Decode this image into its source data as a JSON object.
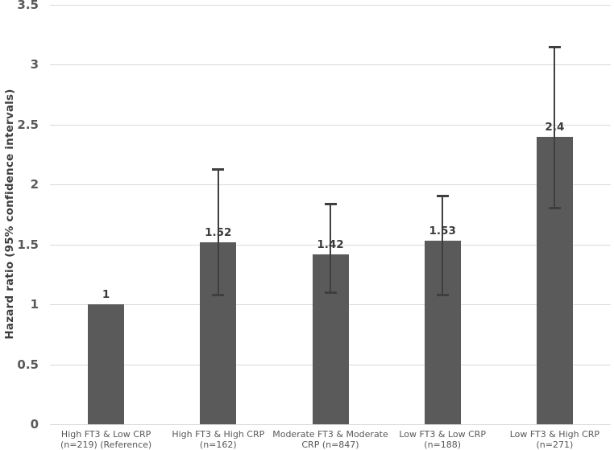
{
  "chart_data": {
    "type": "bar",
    "title": "",
    "xlabel": "",
    "ylabel": "Hazard ratio (95% confidence intervals)",
    "ylim": [
      0,
      3.5
    ],
    "grid": true,
    "legend_position": "none",
    "yticks": [
      {
        "value": 0,
        "label": "0"
      },
      {
        "value": 0.5,
        "label": "0.5"
      },
      {
        "value": 1,
        "label": "1"
      },
      {
        "value": 1.5,
        "label": "1.5"
      },
      {
        "value": 2,
        "label": "2"
      },
      {
        "value": 2.5,
        "label": "2.5"
      },
      {
        "value": 3,
        "label": "3"
      },
      {
        "value": 3.5,
        "label": "3.5"
      }
    ],
    "bars": [
      {
        "category_lines": [
          "High FT3 & Low CRP",
          "(n=219) (Reference)"
        ],
        "value": 1,
        "value_label": "1",
        "ci_low": null,
        "ci_high": null
      },
      {
        "category_lines": [
          "High FT3 & High CRP",
          "(n=162)"
        ],
        "value": 1.52,
        "value_label": "1.52",
        "ci_low": 1.08,
        "ci_high": 2.13
      },
      {
        "category_lines": [
          "Moderate FT3 & Moderate",
          "CRP (n=847)"
        ],
        "value": 1.42,
        "value_label": "1.42",
        "ci_low": 1.1,
        "ci_high": 1.84
      },
      {
        "category_lines": [
          "Low FT3 & Low CRP",
          "(n=188)"
        ],
        "value": 1.53,
        "value_label": "1.53",
        "ci_low": 1.08,
        "ci_high": 1.91
      },
      {
        "category_lines": [
          "Low FT3 & High CRP",
          "(n=271)"
        ],
        "value": 2.4,
        "value_label": "2.4",
        "ci_low": 1.81,
        "ci_high": 3.15
      }
    ],
    "colors": {
      "bar": "#5a5a5a",
      "error_bar": "#3f3f3f",
      "gridline": "#d9d9d9",
      "tick_text": "#595959",
      "value_text": "#3b3b3b",
      "category_text": "#595959",
      "background": "#ffffff"
    }
  }
}
